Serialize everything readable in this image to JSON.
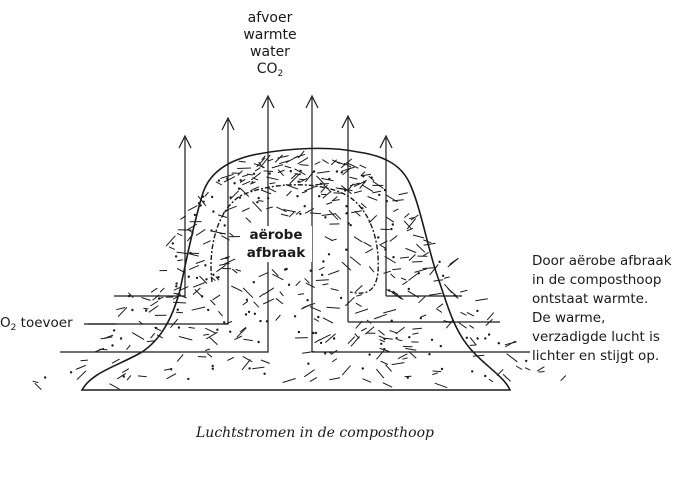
{
  "outflow": {
    "lines": [
      "afvoer",
      "warmte",
      "water"
    ],
    "co2_base": "CO",
    "co2_sub": "2"
  },
  "process": {
    "line1": "aërobe",
    "line2": "afbraak"
  },
  "inflow": {
    "base": "O",
    "sub": "2",
    "text": " toevoer"
  },
  "explanation": {
    "lines": [
      "Door aërobe afbraak",
      "in de composthoop",
      "ontstaat warmte.",
      "De warme,",
      "verzadigde lucht is",
      "lichter en stijgt op."
    ]
  },
  "caption": "Luchtstromen in de composthoop",
  "colors": {
    "ink": "#1a1a1a",
    "background": "#ffffff"
  }
}
